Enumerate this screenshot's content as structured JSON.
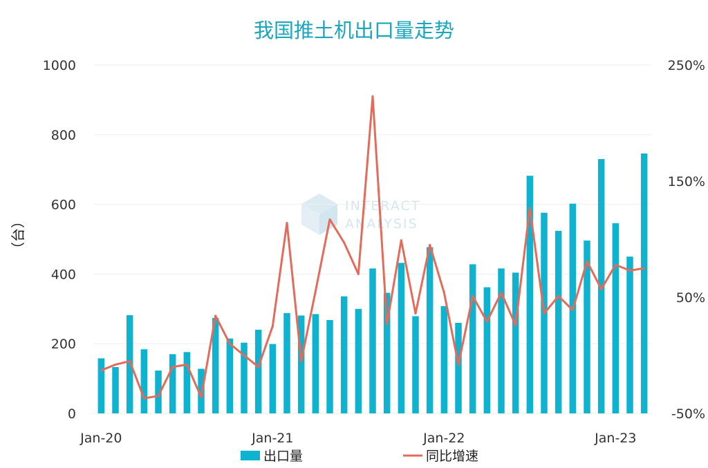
{
  "colors": {
    "bar": "#0fb3cf",
    "line": "#e46a5a",
    "title": "#1aa6bd",
    "grid": "#eeeeee",
    "watermark": "#d5e6ee"
  },
  "watermark": {
    "line1": "INTERACT",
    "line2": "ANALYSIS",
    "icon": "cube-logo-icon"
  },
  "chart_data": {
    "type": "bar",
    "title": "我国推土机出口量走势",
    "ylabel": "（台）",
    "y2label": "",
    "ylim": [
      0,
      1000
    ],
    "y2lim": [
      -50,
      250
    ],
    "yticks": [
      "0",
      "200",
      "400",
      "600",
      "800",
      "1000"
    ],
    "y2ticks": [
      "-50%",
      "50%",
      "150%",
      "250%"
    ],
    "xticks": [
      {
        "index": 0,
        "label": "Jan-20"
      },
      {
        "index": 12,
        "label": "Jan-21"
      },
      {
        "index": 24,
        "label": "Jan-22"
      },
      {
        "index": 36,
        "label": "Jan-23"
      }
    ],
    "series": [
      {
        "name": "出口量",
        "type": "bar",
        "axis": "left",
        "values": [
          158,
          133,
          282,
          184,
          123,
          170,
          176,
          128,
          274,
          215,
          203,
          240,
          199,
          288,
          281,
          285,
          268,
          336,
          300,
          416,
          346,
          432,
          279,
          477,
          308,
          260,
          428,
          362,
          416,
          404,
          682,
          576,
          524,
          602,
          496,
          730,
          546,
          450,
          746
        ]
      },
      {
        "name": "同比增速",
        "type": "line",
        "axis": "right",
        "values": [
          -13,
          -8,
          -5,
          -37,
          -35,
          -10,
          -8,
          -36,
          34,
          10,
          0,
          -10,
          25,
          114,
          -5,
          55,
          117,
          97,
          70,
          223,
          27,
          99,
          36,
          95,
          54,
          -8,
          51,
          29,
          54,
          26,
          127,
          36,
          51,
          39,
          81,
          57,
          78,
          73,
          75
        ]
      }
    ],
    "legend": {
      "placement": "bottom",
      "items": [
        "出口量",
        "同比增速"
      ]
    }
  }
}
